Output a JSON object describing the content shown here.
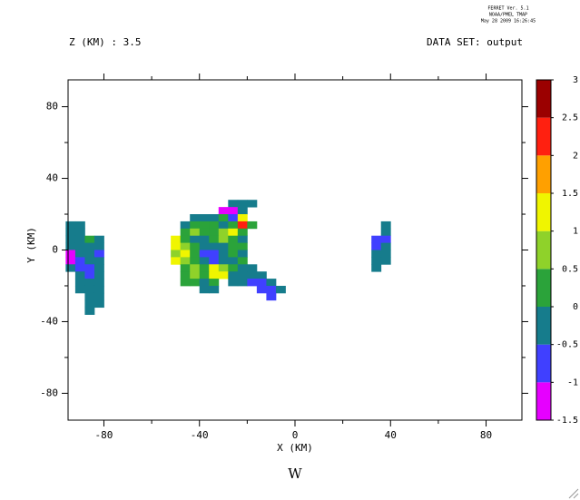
{
  "chart_data": {
    "type": "heatmap",
    "header": [
      "FERRET Ver. 5.1",
      "NOAA/PMEL TMAP",
      "May 28 2009 16:26:45"
    ],
    "title": "Z (KM) : 3.5",
    "subtitle": "DATA SET: output",
    "x_label": "X (KM)",
    "y_label": "Y (KM)",
    "caption": "W",
    "xlim": [
      -95,
      95
    ],
    "ylim": [
      -95,
      95
    ],
    "xticks": [
      -80,
      -40,
      0,
      40,
      80
    ],
    "yticks": [
      -80,
      -40,
      0,
      40,
      80
    ],
    "minor_xticks": [
      -60,
      -20,
      20,
      60
    ],
    "minor_yticks": [
      -60,
      -20,
      20,
      60
    ],
    "cell_size": 4,
    "levels": [
      -1.5,
      -1,
      -0.5,
      0,
      0.5,
      1,
      1.5,
      2,
      2.5,
      3
    ],
    "colors": [
      "#e600ff",
      "#4040ff",
      "#167c8c",
      "#2ba33a",
      "#8fd22a",
      "#f0f500",
      "#ffa000",
      "#ff2010",
      "#9b0000"
    ],
    "x": [
      -94,
      -90,
      -94,
      -90,
      -94,
      -90,
      -86,
      -82,
      -94,
      -90,
      -86,
      -82,
      -94,
      -90,
      -86,
      -82,
      -94,
      -90,
      -86,
      -82,
      -94,
      -90,
      -86,
      -82,
      -90,
      -86,
      -82,
      -90,
      -86,
      -82,
      -90,
      -86,
      -82,
      -86,
      -82,
      -86,
      -82,
      -86,
      -26,
      -22,
      -18,
      -30,
      -26,
      -22,
      -42,
      -38,
      -34,
      -30,
      -26,
      -22,
      -46,
      -42,
      -38,
      -34,
      -30,
      -26,
      -22,
      -18,
      -46,
      -42,
      -38,
      -34,
      -30,
      -26,
      -22,
      -50,
      -46,
      -42,
      -38,
      -34,
      -30,
      -26,
      -22,
      -50,
      -46,
      -42,
      -38,
      -34,
      -30,
      -26,
      -22,
      -50,
      -46,
      -42,
      -38,
      -34,
      -30,
      -26,
      -22,
      -50,
      -46,
      -42,
      -38,
      -34,
      -30,
      -26,
      -22,
      -46,
      -42,
      -38,
      -34,
      -30,
      -26,
      -22,
      -18,
      -46,
      -42,
      -38,
      -34,
      -30,
      -26,
      -22,
      -18,
      -14,
      -46,
      -42,
      -38,
      -34,
      -26,
      -22,
      -18,
      -14,
      -10,
      -38,
      -34,
      -14,
      -10,
      -6,
      -10,
      38,
      38,
      34,
      38,
      34,
      38,
      34,
      38,
      34,
      38,
      34
    ],
    "y": [
      14,
      14,
      10,
      10,
      6,
      6,
      6,
      6,
      2,
      2,
      2,
      2,
      -2,
      -2,
      -2,
      -2,
      -6,
      -6,
      -6,
      -6,
      -10,
      -10,
      -10,
      -10,
      -14,
      -14,
      -14,
      -18,
      -18,
      -18,
      -22,
      -22,
      -22,
      -26,
      -26,
      -30,
      -30,
      -34,
      26,
      26,
      26,
      22,
      22,
      22,
      18,
      18,
      18,
      18,
      18,
      18,
      14,
      14,
      14,
      14,
      14,
      14,
      14,
      14,
      10,
      10,
      10,
      10,
      10,
      10,
      10,
      6,
      6,
      6,
      6,
      6,
      6,
      6,
      6,
      2,
      2,
      2,
      2,
      2,
      2,
      2,
      2,
      -2,
      -2,
      -2,
      -2,
      -2,
      -2,
      -2,
      -2,
      -6,
      -6,
      -6,
      -6,
      -6,
      -6,
      -6,
      -6,
      -10,
      -10,
      -10,
      -10,
      -10,
      -10,
      -10,
      -10,
      -14,
      -14,
      -14,
      -14,
      -14,
      -14,
      -14,
      -14,
      -14,
      -18,
      -18,
      -18,
      -18,
      -18,
      -18,
      -18,
      -18,
      -18,
      -22,
      -22,
      -22,
      -22,
      -22,
      -26,
      14,
      10,
      6,
      6,
      2,
      2,
      -2,
      -2,
      -6,
      -6,
      -10
    ],
    "values": [
      -0.25,
      -0.25,
      -0.25,
      -0.25,
      -0.25,
      -0.25,
      0.25,
      -0.25,
      -0.25,
      -0.25,
      -0.25,
      -0.25,
      -1.25,
      -0.25,
      -0.25,
      -0.75,
      -1.25,
      -0.75,
      -0.25,
      -0.25,
      -0.25,
      -0.75,
      -0.75,
      -0.25,
      -0.25,
      -0.75,
      -0.25,
      -0.25,
      -0.25,
      -0.25,
      -0.25,
      -0.25,
      -0.25,
      -0.25,
      -0.25,
      -0.25,
      -0.25,
      -0.25,
      -0.25,
      -0.25,
      -0.25,
      -1.25,
      -1.25,
      -0.25,
      -0.25,
      -0.25,
      -0.25,
      0.25,
      -0.75,
      1.25,
      -0.25,
      0.25,
      0.25,
      0.25,
      -0.25,
      0.25,
      2.25,
      0.25,
      0.25,
      0.75,
      0.25,
      0.25,
      0.75,
      1.25,
      0.25,
      1.25,
      0.25,
      -0.25,
      -0.25,
      0.25,
      0.75,
      0.25,
      -0.25,
      1.25,
      0.75,
      0.25,
      -0.25,
      -0.25,
      -0.25,
      0.25,
      0.25,
      0.75,
      1.25,
      0.25,
      -0.75,
      -0.75,
      -0.25,
      0.25,
      -0.25,
      1.25,
      0.75,
      0.25,
      -0.25,
      -0.75,
      -0.25,
      -0.25,
      0.25,
      0.25,
      0.75,
      0.25,
      1.25,
      0.75,
      0.25,
      -0.25,
      -0.25,
      0.25,
      0.75,
      0.25,
      1.25,
      1.25,
      -0.25,
      -0.25,
      -0.25,
      -0.25,
      0.25,
      0.25,
      -0.25,
      0.25,
      -0.25,
      -0.25,
      -0.75,
      -0.75,
      -0.25,
      -0.25,
      -0.25,
      -0.75,
      -0.75,
      -0.25,
      -0.75,
      -0.25,
      -0.25,
      -0.75,
      -0.75,
      -0.75,
      -0.25,
      -0.25,
      -0.25,
      -0.25,
      -0.25,
      -0.25
    ]
  }
}
